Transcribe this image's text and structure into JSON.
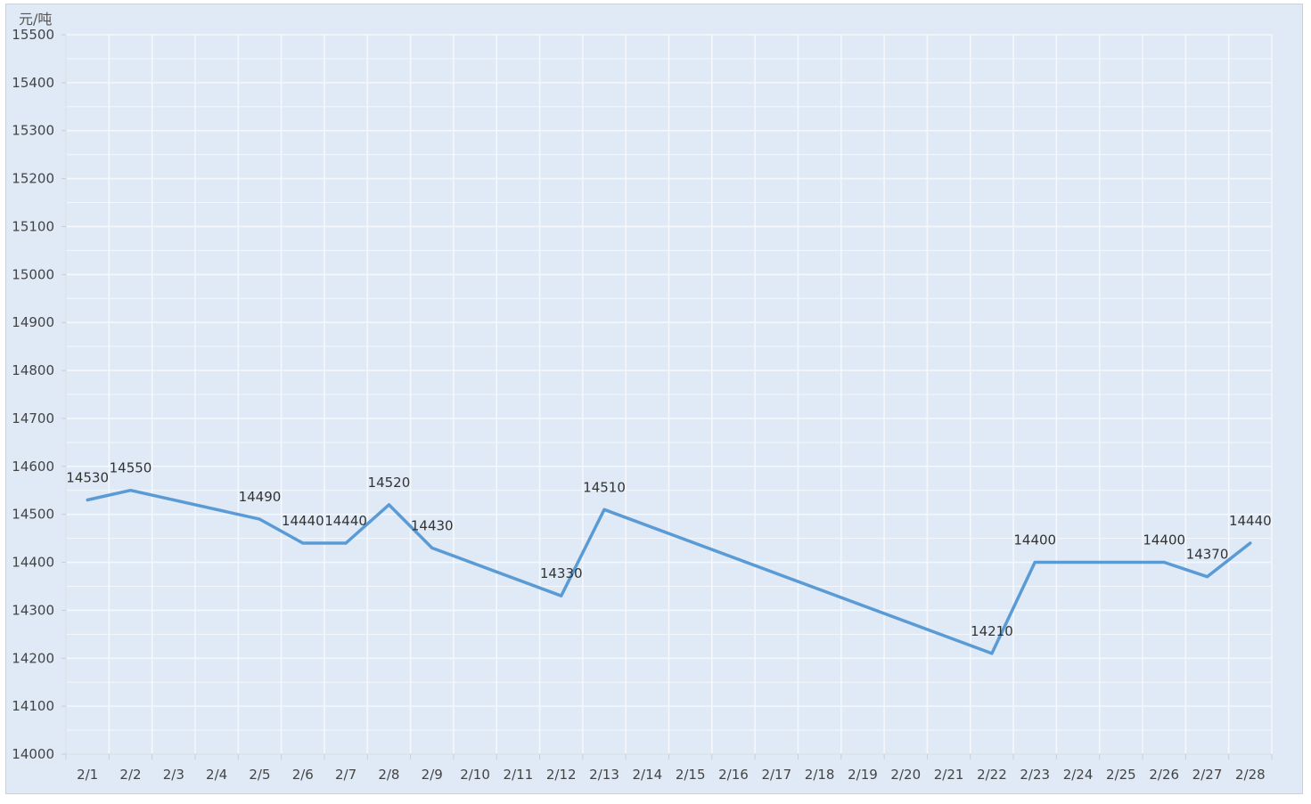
{
  "chart_data": {
    "type": "line",
    "ylabel": "元/吨",
    "ylim": [
      14000,
      15500
    ],
    "ytick_step": 100,
    "grid": true,
    "line_color": "#5b9bd5",
    "background_color": "#dfeaf6",
    "categories": [
      "2/1",
      "2/2",
      "2/3",
      "2/4",
      "2/5",
      "2/6",
      "2/7",
      "2/8",
      "2/9",
      "2/10",
      "2/11",
      "2/12",
      "2/13",
      "2/14",
      "2/15",
      "2/16",
      "2/17",
      "2/18",
      "2/19",
      "2/20",
      "2/21",
      "2/22",
      "2/23",
      "2/24",
      "2/25",
      "2/26",
      "2/27",
      "2/28"
    ],
    "series": [
      {
        "values": [
          14530,
          14550,
          null,
          null,
          14490,
          14440,
          14440,
          14520,
          14430,
          null,
          null,
          14330,
          14510,
          null,
          null,
          null,
          null,
          null,
          null,
          null,
          null,
          14210,
          14400,
          null,
          null,
          14400,
          14370,
          14440
        ]
      }
    ]
  }
}
